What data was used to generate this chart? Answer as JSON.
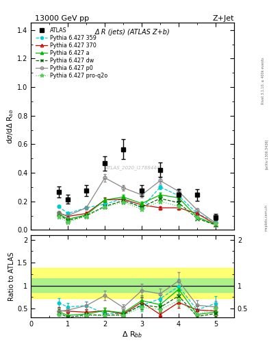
{
  "title_top": "13000 GeV pp",
  "title_right": "Z+Jet",
  "plot_title": "Δ R (jets) (ATLAS Z+b)",
  "xlabel": "Δ R_{bb}",
  "ylabel_main": "dσ/dΔ R_{bb}",
  "ylabel_ratio": "Ratio to ATLAS",
  "watermark": "ATLAS_2020_I1788444",
  "rivet_text": "Rivet 3.1.10, ≥ 400k events",
  "arxiv_text": "[arXiv:1306.3436]",
  "mcplots_text": "mcplots.cern.ch",
  "xlim": [
    0,
    5.5
  ],
  "ylim_main": [
    0,
    1.45
  ],
  "ylim_ratio": [
    0.3,
    2.1
  ],
  "x_atlas": [
    0.75,
    1.0,
    1.5,
    2.0,
    2.5,
    3.0,
    3.5,
    4.0,
    4.5,
    5.0
  ],
  "y_atlas": [
    0.265,
    0.215,
    0.275,
    0.465,
    0.565,
    0.275,
    0.42,
    0.245,
    0.245,
    0.09
  ],
  "y_atlas_err": [
    0.04,
    0.03,
    0.04,
    0.05,
    0.07,
    0.04,
    0.05,
    0.04,
    0.04,
    0.02
  ],
  "x_mc": [
    0.75,
    1.0,
    1.5,
    2.0,
    2.5,
    3.0,
    3.5,
    4.0,
    4.5,
    5.0
  ],
  "pythia359_y": [
    0.165,
    0.115,
    0.155,
    0.18,
    0.22,
    0.155,
    0.3,
    0.24,
    0.115,
    0.055
  ],
  "pythia359_yerr": [
    0.01,
    0.008,
    0.01,
    0.012,
    0.015,
    0.01,
    0.015,
    0.012,
    0.01,
    0.006
  ],
  "pythia370_y": [
    0.12,
    0.095,
    0.115,
    0.21,
    0.215,
    0.175,
    0.155,
    0.155,
    0.115,
    0.04
  ],
  "pythia370_yerr": [
    0.01,
    0.008,
    0.01,
    0.015,
    0.015,
    0.012,
    0.012,
    0.012,
    0.01,
    0.005
  ],
  "pythia_a_y": [
    0.115,
    0.075,
    0.105,
    0.21,
    0.23,
    0.185,
    0.245,
    0.225,
    0.09,
    0.038
  ],
  "pythia_a_yerr": [
    0.01,
    0.007,
    0.009,
    0.014,
    0.015,
    0.012,
    0.014,
    0.013,
    0.008,
    0.005
  ],
  "pythia_dw_y": [
    0.11,
    0.065,
    0.1,
    0.165,
    0.205,
    0.16,
    0.22,
    0.19,
    0.08,
    0.035
  ],
  "pythia_dw_yerr": [
    0.009,
    0.007,
    0.009,
    0.012,
    0.014,
    0.011,
    0.013,
    0.012,
    0.008,
    0.005
  ],
  "pythia_p0_y": [
    0.115,
    0.1,
    0.155,
    0.365,
    0.295,
    0.245,
    0.345,
    0.27,
    0.14,
    0.048
  ],
  "pythia_p0_yerr": [
    0.01,
    0.009,
    0.012,
    0.025,
    0.02,
    0.017,
    0.022,
    0.018,
    0.012,
    0.006
  ],
  "pythia_proq2o_y": [
    0.095,
    0.055,
    0.095,
    0.16,
    0.195,
    0.145,
    0.2,
    0.165,
    0.09,
    0.045
  ],
  "pythia_proq2o_yerr": [
    0.008,
    0.006,
    0.008,
    0.011,
    0.013,
    0.01,
    0.012,
    0.011,
    0.008,
    0.005
  ],
  "color_359": "#00CCCC",
  "color_370": "#CC0000",
  "color_a": "#00BB00",
  "color_dw": "#006600",
  "color_p0": "#888888",
  "color_proq2o": "#55CC55",
  "band_yellow_lo": 0.73,
  "band_yellow_hi": 1.38,
  "band_green_lo": 0.86,
  "band_green_hi": 1.16,
  "background_color": "#ffffff"
}
